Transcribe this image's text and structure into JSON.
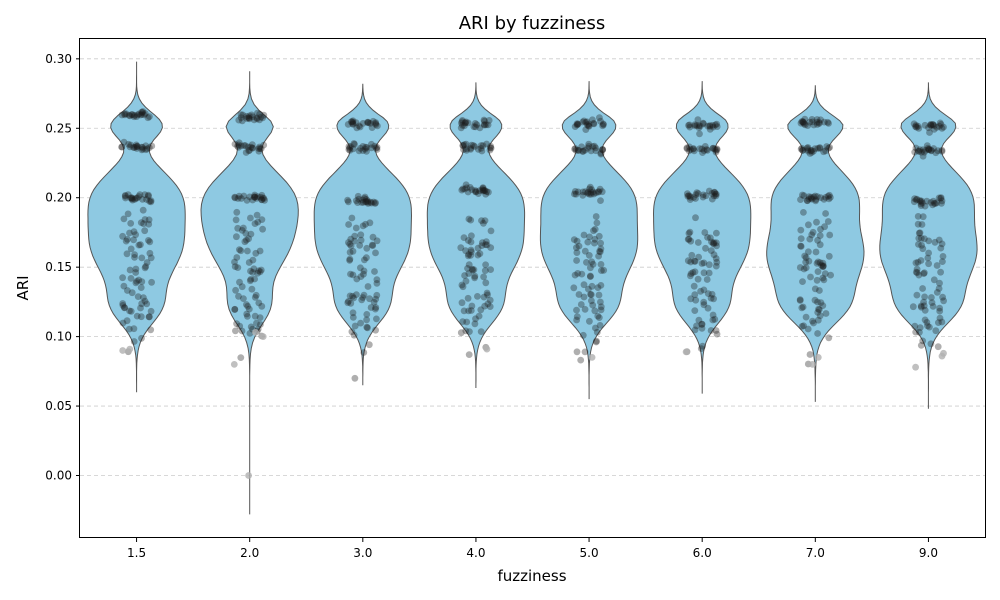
{
  "chart_data": {
    "type": "violin",
    "title": "ARI by fuzziness",
    "xlabel": "fuzziness",
    "ylabel": "ARI",
    "categories": [
      "1.5",
      "2.0",
      "3.0",
      "4.0",
      "5.0",
      "6.0",
      "7.0",
      "9.0"
    ],
    "yticks": [
      "0.00",
      "0.05",
      "0.10",
      "0.15",
      "0.20",
      "0.25",
      "0.30"
    ],
    "ylim": [
      -0.045,
      0.315
    ],
    "grid": "y-dashed",
    "violin_color": "#8ec9e2",
    "point_color": "#1a1a1a",
    "outlier_color": "#b0b0b0",
    "distributions": [
      {
        "category": "1.5",
        "min": 0.06,
        "max": 0.298,
        "peak": 0.165,
        "clusters": [
          0.26,
          0.237,
          0.2,
          0.173,
          0.15,
          0.125,
          0.11
        ],
        "outliers": [
          0.091,
          0.09
        ]
      },
      {
        "category": "2.0",
        "min": -0.028,
        "max": 0.291,
        "peak": 0.17,
        "clusters": [
          0.258,
          0.236,
          0.2,
          0.172,
          0.148,
          0.13,
          0.11
        ],
        "outliers": [
          0.0,
          0.08,
          0.103,
          0.1
        ]
      },
      {
        "category": "3.0",
        "min": 0.065,
        "max": 0.282,
        "peak": 0.165,
        "clusters": [
          0.254,
          0.236,
          0.198,
          0.17,
          0.15,
          0.13,
          0.11
        ],
        "outliers": []
      },
      {
        "category": "4.0",
        "min": 0.063,
        "max": 0.283,
        "peak": 0.165,
        "clusters": [
          0.253,
          0.236,
          0.205,
          0.17,
          0.15,
          0.13,
          0.11
        ],
        "outliers": [
          0.091
        ]
      },
      {
        "category": "5.0",
        "min": 0.055,
        "max": 0.284,
        "peak": 0.163,
        "clusters": [
          0.253,
          0.235,
          0.204,
          0.168,
          0.148,
          0.128,
          0.105
        ],
        "outliers": [
          0.085
        ]
      },
      {
        "category": "6.0",
        "min": 0.059,
        "max": 0.284,
        "peak": 0.165,
        "clusters": [
          0.252,
          0.235,
          0.202,
          0.168,
          0.15,
          0.13,
          0.105
        ],
        "outliers": [
          0.089
        ]
      },
      {
        "category": "7.0",
        "min": 0.053,
        "max": 0.281,
        "peak": 0.158,
        "clusters": [
          0.254,
          0.235,
          0.2,
          0.168,
          0.15,
          0.13,
          0.11
        ],
        "outliers": [
          0.08,
          0.085
        ]
      },
      {
        "category": "9.0",
        "min": 0.048,
        "max": 0.283,
        "peak": 0.16,
        "clusters": [
          0.252,
          0.234,
          0.197,
          0.168,
          0.15,
          0.125,
          0.105
        ],
        "outliers": [
          0.086,
          0.078,
          0.088
        ]
      }
    ]
  }
}
